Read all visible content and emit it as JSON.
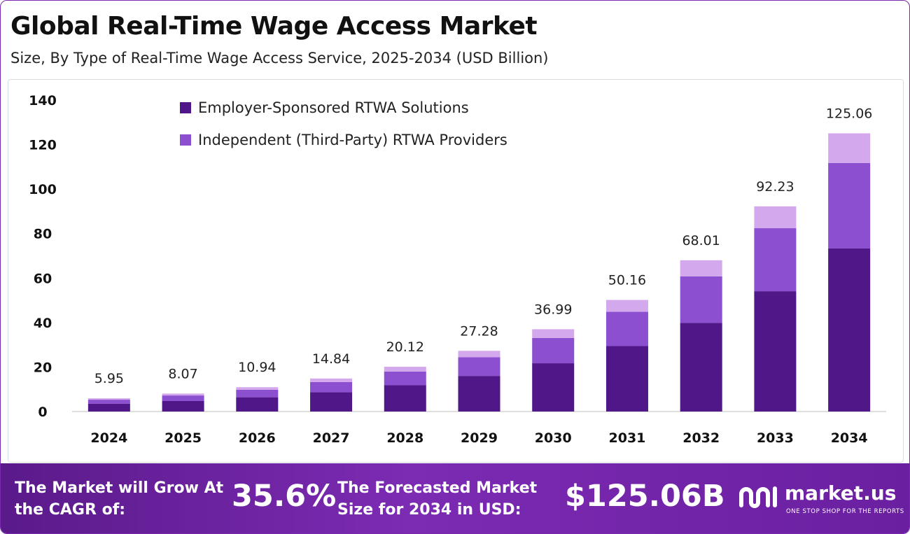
{
  "header": {
    "title": "Global Real-Time Wage Access Market",
    "subtitle": "Size, By Type of Real-Time Wage Access Service, 2025-2034 (USD Billion)"
  },
  "chart_data": {
    "type": "bar",
    "stacked": true,
    "title": "Global Real-Time Wage Access Market",
    "subtitle": "Size, By Type of Real-Time Wage Access Service, 2025-2034 (USD Billion)",
    "categories": [
      "2024",
      "2025",
      "2026",
      "2027",
      "2028",
      "2029",
      "2030",
      "2031",
      "2032",
      "2033",
      "2034"
    ],
    "series": [
      {
        "name": "Employer-Sponsored RTWA Solutions",
        "color": "#4f1787",
        "values": [
          3.49,
          4.73,
          6.41,
          8.7,
          11.8,
          16.0,
          21.69,
          29.41,
          39.88,
          54.08,
          73.33
        ]
      },
      {
        "name": "Independent (Third-Party) RTWA Providers",
        "color": "#8b4fd0",
        "values": [
          1.83,
          2.48,
          3.36,
          4.56,
          6.18,
          8.38,
          11.36,
          15.41,
          20.89,
          28.33,
          38.41
        ]
      },
      {
        "color": "#d4a8ec",
        "values": [
          0.63,
          0.86,
          1.17,
          1.58,
          2.14,
          2.9,
          3.94,
          5.34,
          7.24,
          9.82,
          13.32
        ]
      }
    ],
    "totals": [
      5.95,
      8.07,
      10.94,
      14.84,
      20.12,
      27.28,
      36.99,
      50.16,
      68.01,
      92.23,
      125.06
    ],
    "total_labels": [
      "5.95",
      "8.07",
      "10.94",
      "14.84",
      "20.12",
      "27.28",
      "36.99",
      "50.16",
      "68.01",
      "92.23",
      "125.06"
    ],
    "yticks": [
      0,
      20,
      40,
      60,
      80,
      100,
      120,
      140
    ],
    "ylim": [
      0,
      140
    ],
    "grid": false,
    "legend_position": "top-left"
  },
  "footer": {
    "cagr_label": "The Market will Grow At the CAGR of:",
    "cagr_value": "35.6%",
    "forecast_label": "The Forecasted Market Size for 2034 in USD:",
    "forecast_value": "$125.06B",
    "brand_name": "market.us",
    "brand_tagline": "ONE STOP SHOP FOR THE REPORTS",
    "brand_icon": "market-us-logo-icon"
  },
  "colors": {
    "footer_bg": "#6a1fa0",
    "series_dark": "#4f1787",
    "series_mid": "#8b4fd0",
    "series_light": "#d4a8ec"
  }
}
